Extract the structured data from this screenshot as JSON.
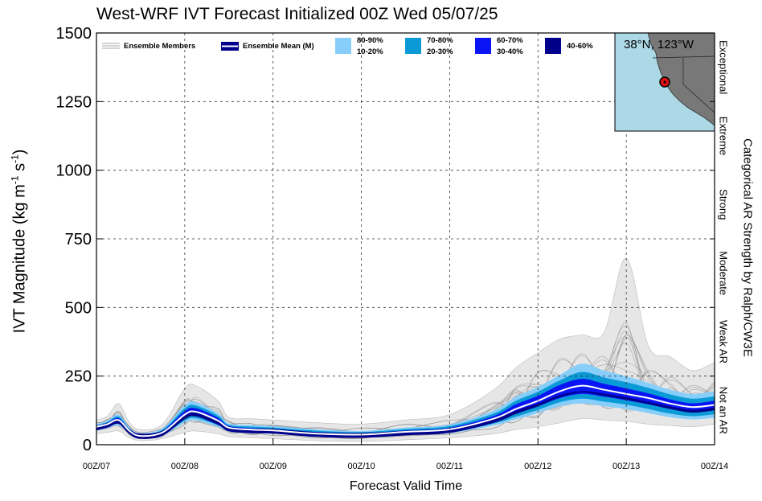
{
  "chart_data": {
    "type": "area",
    "title": "West-WRF IVT Forecast Initialized 00Z Wed 05/07/25",
    "xlabel": "Forecast Valid Time",
    "ylabel_base": "IVT Magnitude (kg m",
    "ylabel_exp1": "-1",
    "ylabel_mid": " s",
    "ylabel_exp2": "-1",
    "ylabel_end": ")",
    "right_axis_label": "Categorical AR Strength by Ralph/CW3E",
    "ylim": [
      0,
      1500
    ],
    "xlim": [
      "00Z/07",
      "00Z/14"
    ],
    "yticks": [
      "0",
      "250",
      "500",
      "750",
      "1000",
      "1250",
      "1500"
    ],
    "xticks": [
      "00Z/07",
      "00Z/08",
      "00Z/09",
      "00Z/10",
      "00Z/11",
      "00Z/12",
      "00Z/13",
      "00Z/14"
    ],
    "grid": true,
    "legend_position": "top-left",
    "legend": {
      "members": "Ensemble Members",
      "mean": "Ensemble Mean (M)",
      "band1_top": "80-90%",
      "band1_bottom": "10-20%",
      "band2_top": "70-80%",
      "band2_bottom": "20-30%",
      "band3_top": "60-70%",
      "band3_bottom": "30-40%",
      "band4": "40-60%"
    },
    "categories_right": [
      "Not an AR",
      "Weak AR",
      "Moderate",
      "Strong",
      "Extreme",
      "Exceptional"
    ],
    "inset": {
      "location_label": "38°N, 123°W"
    },
    "colors": {
      "p10_90": "#87cefa",
      "p20_80": "#0a9ad6",
      "p30_70": "#0a14f5",
      "p40_60": "#00008b",
      "mean": "#ffffff",
      "members": "#8c8c8c",
      "envelope": "#e6e6e6",
      "ocean": "#add8e6",
      "land": "#787878",
      "marker": "#dd1111"
    },
    "time_days": [
      0,
      0.125,
      0.25,
      0.375,
      0.5,
      0.75,
      1.0,
      1.125,
      1.375,
      1.5,
      1.75,
      2.0,
      2.5,
      3.0,
      3.5,
      4.0,
      4.5,
      4.75,
      5.0,
      5.25,
      5.5,
      5.75,
      6.0,
      6.25,
      6.5,
      6.75,
      7.0
    ],
    "series": [
      {
        "name": "Ensemble Mean (M)",
        "values": [
          65,
          75,
          90,
          50,
          32,
          45,
          110,
          120,
          88,
          62,
          55,
          52,
          40,
          37,
          47,
          56,
          95,
          130,
          160,
          195,
          215,
          200,
          185,
          170,
          150,
          137,
          145
        ]
      },
      {
        "name": "80-90%",
        "values": [
          75,
          88,
          110,
          62,
          42,
          60,
          145,
          155,
          115,
          78,
          72,
          68,
          56,
          50,
          62,
          74,
          125,
          175,
          210,
          255,
          295,
          270,
          250,
          225,
          200,
          185,
          195
        ]
      },
      {
        "name": "10-20%",
        "values": [
          52,
          60,
          70,
          40,
          25,
          34,
          80,
          88,
          65,
          48,
          42,
          40,
          30,
          27,
          35,
          42,
          70,
          92,
          115,
          140,
          150,
          140,
          130,
          115,
          100,
          92,
          98
        ]
      },
      {
        "name": "70-80%",
        "values": [
          71,
          83,
          103,
          58,
          39,
          55,
          133,
          143,
          106,
          72,
          66,
          62,
          51,
          46,
          57,
          68,
          114,
          160,
          193,
          235,
          265,
          245,
          228,
          207,
          183,
          168,
          176
        ]
      },
      {
        "name": "20-30%",
        "values": [
          56,
          65,
          76,
          43,
          27,
          37,
          88,
          97,
          71,
          52,
          46,
          44,
          33,
          30,
          38,
          46,
          77,
          102,
          127,
          155,
          168,
          157,
          146,
          130,
          113,
          104,
          111
        ]
      },
      {
        "name": "60-70%",
        "values": [
          69,
          80,
          97,
          55,
          36,
          51,
          123,
          133,
          98,
          68,
          61,
          58,
          46,
          42,
          52,
          62,
          105,
          147,
          178,
          218,
          240,
          222,
          205,
          187,
          165,
          151,
          160
        ]
      },
      {
        "name": "30-40%",
        "values": [
          59,
          69,
          82,
          46,
          29,
          40,
          96,
          106,
          77,
          56,
          49,
          47,
          35,
          32,
          41,
          50,
          84,
          113,
          140,
          170,
          185,
          175,
          162,
          147,
          130,
          118,
          126
        ]
      },
      {
        "name": "40-60%",
        "values": [
          62,
          72,
          86,
          48,
          31,
          43,
          103,
          113,
          83,
          59,
          52,
          50,
          38,
          35,
          44,
          53,
          90,
          122,
          150,
          183,
          200,
          188,
          174,
          158,
          140,
          127,
          135
        ]
      },
      {
        "name": "Ensemble Members (max)",
        "values": [
          90,
          105,
          150,
          80,
          55,
          75,
          205,
          215,
          160,
          100,
          95,
          90,
          80,
          75,
          90,
          110,
          200,
          280,
          335,
          385,
          400,
          410,
          680,
          360,
          320,
          270,
          300
        ]
      },
      {
        "name": "Ensemble Members (min)",
        "values": [
          40,
          45,
          50,
          25,
          15,
          22,
          45,
          50,
          40,
          30,
          25,
          22,
          15,
          12,
          18,
          25,
          40,
          55,
          65,
          80,
          95,
          90,
          85,
          75,
          70,
          65,
          75
        ]
      }
    ]
  }
}
